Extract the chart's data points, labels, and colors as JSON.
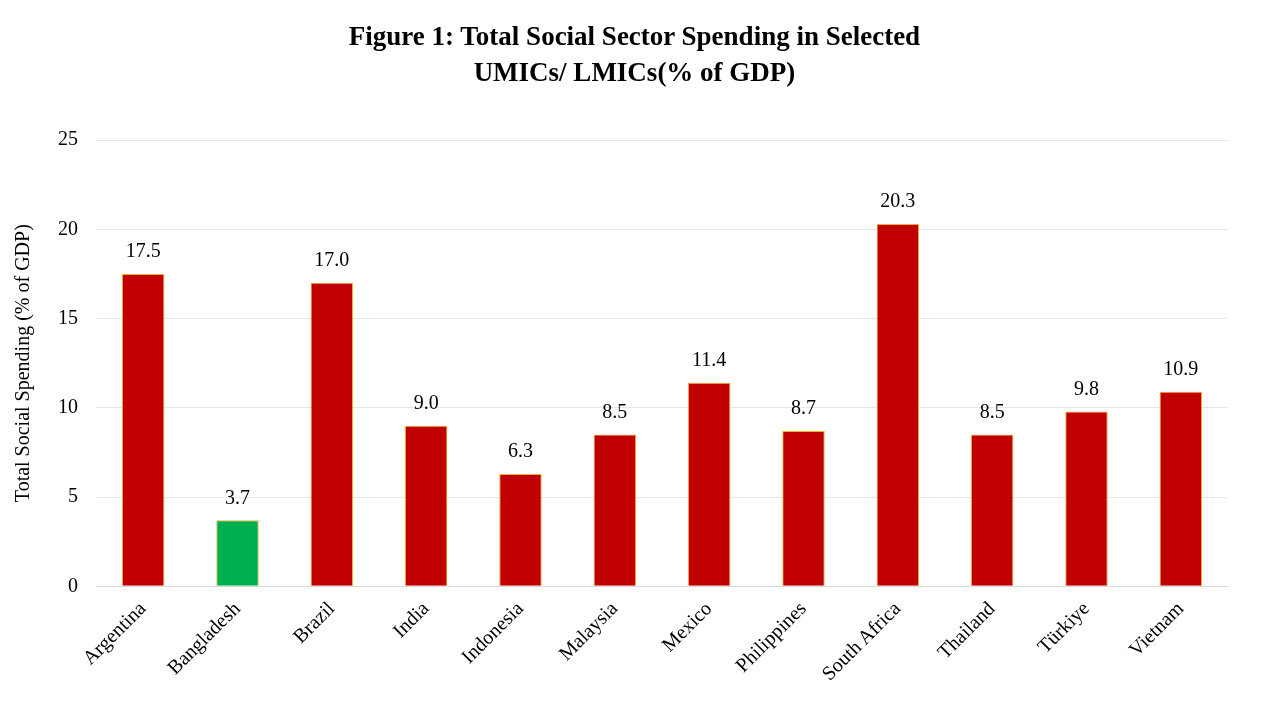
{
  "chart_data": {
    "type": "bar",
    "title": "Figure 1: Total Social Sector Spending in Selected UMICs/ LMICs(% of GDP)",
    "ylabel": "Total Social Spending (% of GDP)",
    "categories": [
      "Argentina",
      "Bangladesh",
      "Brazil",
      "India",
      "Indonesia",
      "Malaysia",
      "Mexico",
      "Philippines",
      "South Africa",
      "Thailand",
      "Türkiye",
      "Vietnam"
    ],
    "values": [
      17.5,
      3.7,
      17.0,
      9.0,
      6.3,
      8.5,
      11.4,
      8.7,
      20.3,
      8.5,
      9.8,
      10.9
    ],
    "value_labels": [
      "17.5",
      "3.7",
      "17.0",
      "9.0",
      "6.3",
      "8.5",
      "11.4",
      "8.7",
      "20.3",
      "8.5",
      "9.8",
      "10.9"
    ],
    "colors": [
      "#c00000",
      "#00b050",
      "#c00000",
      "#c00000",
      "#c00000",
      "#c00000",
      "#c00000",
      "#c00000",
      "#c00000",
      "#c00000",
      "#c00000",
      "#c00000"
    ],
    "ylim": [
      0,
      25
    ],
    "yticks": [
      0,
      5,
      10,
      15,
      20,
      25
    ],
    "grid": "y",
    "legend": false
  }
}
